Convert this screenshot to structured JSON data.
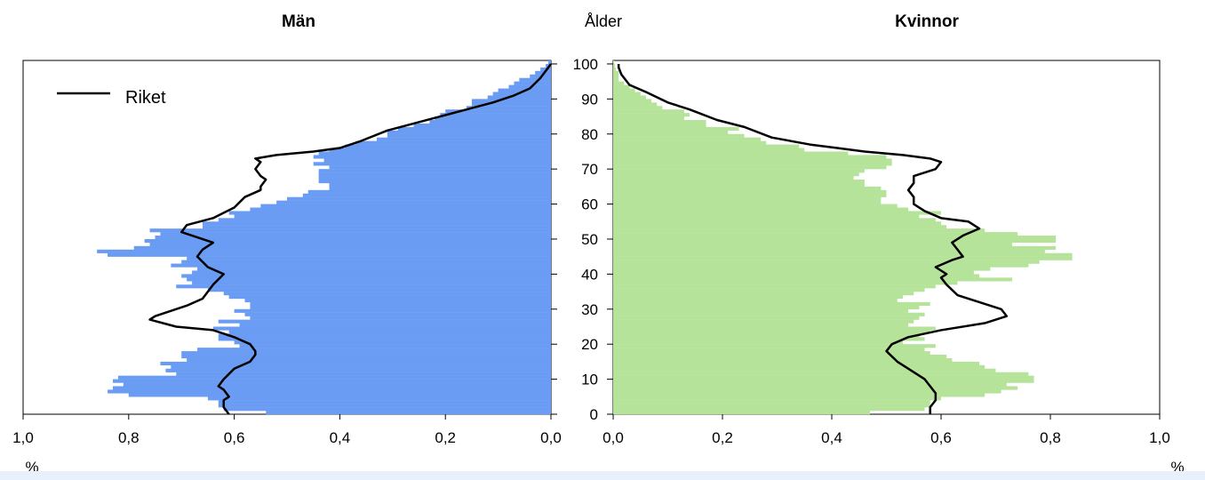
{
  "chart_data": {
    "type": "population-pyramid",
    "center_label": "Ålder",
    "y_ticks": [
      0,
      10,
      20,
      30,
      40,
      50,
      60,
      70,
      80,
      90,
      100
    ],
    "ylim": [
      0,
      101
    ],
    "legend": {
      "label": "Riket",
      "position": "top-left"
    },
    "panels": [
      {
        "title": "Män",
        "side": "left",
        "color": "#6a9cf4",
        "xlim": [
          0,
          1.0
        ],
        "x_ticks": [
          "1,0",
          "0,8",
          "0,6",
          "0,4",
          "0,2",
          "0,0"
        ],
        "unit_label": "%",
        "bars": [
          0.54,
          0.62,
          0.63,
          0.63,
          0.65,
          0.8,
          0.84,
          0.83,
          0.81,
          0.83,
          0.82,
          0.71,
          0.73,
          0.72,
          0.74,
          0.69,
          0.7,
          0.7,
          0.67,
          0.59,
          0.6,
          0.63,
          0.63,
          0.61,
          0.64,
          0.59,
          0.63,
          0.57,
          0.58,
          0.6,
          0.57,
          0.57,
          0.58,
          0.61,
          0.62,
          0.65,
          0.71,
          0.68,
          0.69,
          0.7,
          0.68,
          0.67,
          0.72,
          0.7,
          0.69,
          0.84,
          0.86,
          0.79,
          0.76,
          0.77,
          0.75,
          0.74,
          0.76,
          0.66,
          0.66,
          0.63,
          0.6,
          0.61,
          0.57,
          0.55,
          0.52,
          0.5,
          0.47,
          0.46,
          0.42,
          0.42,
          0.44,
          0.44,
          0.44,
          0.44,
          0.42,
          0.45,
          0.43,
          0.45,
          0.44,
          0.42,
          0.39,
          0.37,
          0.33,
          0.31,
          0.31,
          0.29,
          0.26,
          0.23,
          0.22,
          0.21,
          0.2,
          0.16,
          0.15,
          0.15,
          0.12,
          0.11,
          0.1,
          0.08,
          0.07,
          0.06,
          0.04,
          0.03,
          0.02,
          0.01,
          0.005
        ],
        "riket": [
          [
            0.61,
            0
          ],
          [
            0.62,
            2
          ],
          [
            0.62,
            4
          ],
          [
            0.61,
            5
          ],
          [
            0.62,
            7
          ],
          [
            0.63,
            8
          ],
          [
            0.62,
            10
          ],
          [
            0.6,
            13
          ],
          [
            0.57,
            15
          ],
          [
            0.56,
            17
          ],
          [
            0.56,
            18
          ],
          [
            0.57,
            20
          ],
          [
            0.6,
            22
          ],
          [
            0.64,
            24
          ],
          [
            0.71,
            25
          ],
          [
            0.76,
            27
          ],
          [
            0.75,
            28
          ],
          [
            0.69,
            31
          ],
          [
            0.66,
            33
          ],
          [
            0.65,
            35
          ],
          [
            0.64,
            37
          ],
          [
            0.62,
            40
          ],
          [
            0.65,
            42
          ],
          [
            0.67,
            45
          ],
          [
            0.66,
            47
          ],
          [
            0.64,
            49
          ],
          [
            0.7,
            52
          ],
          [
            0.69,
            54
          ],
          [
            0.64,
            56
          ],
          [
            0.6,
            59
          ],
          [
            0.58,
            62
          ],
          [
            0.55,
            64
          ],
          [
            0.55,
            65
          ],
          [
            0.54,
            67
          ],
          [
            0.55,
            68
          ],
          [
            0.56,
            70
          ],
          [
            0.55,
            72
          ],
          [
            0.56,
            73
          ],
          [
            0.52,
            74
          ],
          [
            0.45,
            75
          ],
          [
            0.4,
            76
          ],
          [
            0.36,
            78
          ],
          [
            0.31,
            81
          ],
          [
            0.26,
            83
          ],
          [
            0.21,
            85
          ],
          [
            0.16,
            87
          ],
          [
            0.11,
            89
          ],
          [
            0.07,
            91
          ],
          [
            0.04,
            93
          ],
          [
            0.02,
            96
          ],
          [
            0.01,
            98
          ],
          [
            0.0,
            100
          ]
        ]
      },
      {
        "title": "Kvinnor",
        "side": "right",
        "color": "#b5e399",
        "xlim": [
          0,
          1.0
        ],
        "x_ticks": [
          "0,0",
          "0,2",
          "0,4",
          "0,6",
          "0,8",
          "1,0"
        ],
        "unit_label": "%",
        "bars": [
          0.47,
          0.57,
          0.58,
          0.58,
          0.6,
          0.68,
          0.71,
          0.74,
          0.72,
          0.77,
          0.77,
          0.76,
          0.7,
          0.68,
          0.67,
          0.62,
          0.61,
          0.58,
          0.57,
          0.59,
          0.53,
          0.57,
          0.56,
          0.58,
          0.59,
          0.54,
          0.55,
          0.56,
          0.57,
          0.54,
          0.56,
          0.58,
          0.52,
          0.53,
          0.55,
          0.57,
          0.59,
          0.63,
          0.73,
          0.67,
          0.66,
          0.69,
          0.76,
          0.78,
          0.84,
          0.84,
          0.79,
          0.81,
          0.73,
          0.81,
          0.81,
          0.74,
          0.68,
          0.61,
          0.6,
          0.59,
          0.56,
          0.6,
          0.54,
          0.52,
          0.49,
          0.49,
          0.5,
          0.5,
          0.49,
          0.46,
          0.46,
          0.44,
          0.45,
          0.46,
          0.5,
          0.51,
          0.51,
          0.5,
          0.43,
          0.35,
          0.34,
          0.28,
          0.27,
          0.24,
          0.21,
          0.23,
          0.17,
          0.17,
          0.13,
          0.14,
          0.13,
          0.09,
          0.08,
          0.07,
          0.06,
          0.05,
          0.04,
          0.03,
          0.02,
          0.01,
          0.01,
          0.01,
          0.005,
          0.003,
          0.002
        ],
        "riket": [
          [
            0.58,
            0
          ],
          [
            0.58,
            2
          ],
          [
            0.59,
            4
          ],
          [
            0.59,
            6
          ],
          [
            0.58,
            8
          ],
          [
            0.57,
            10
          ],
          [
            0.55,
            12
          ],
          [
            0.52,
            15
          ],
          [
            0.5,
            18
          ],
          [
            0.51,
            20
          ],
          [
            0.54,
            22
          ],
          [
            0.6,
            24
          ],
          [
            0.68,
            26
          ],
          [
            0.72,
            28
          ],
          [
            0.71,
            30
          ],
          [
            0.67,
            32
          ],
          [
            0.63,
            34
          ],
          [
            0.61,
            37
          ],
          [
            0.6,
            39
          ],
          [
            0.61,
            40
          ],
          [
            0.59,
            42
          ],
          [
            0.62,
            44
          ],
          [
            0.64,
            45
          ],
          [
            0.63,
            47
          ],
          [
            0.62,
            49
          ],
          [
            0.64,
            51
          ],
          [
            0.67,
            53
          ],
          [
            0.65,
            55
          ],
          [
            0.6,
            56
          ],
          [
            0.57,
            58
          ],
          [
            0.55,
            60
          ],
          [
            0.55,
            62
          ],
          [
            0.54,
            64
          ],
          [
            0.55,
            66
          ],
          [
            0.55,
            68
          ],
          [
            0.59,
            70
          ],
          [
            0.6,
            72
          ],
          [
            0.58,
            73
          ],
          [
            0.53,
            74
          ],
          [
            0.46,
            75
          ],
          [
            0.41,
            76
          ],
          [
            0.36,
            77
          ],
          [
            0.29,
            79
          ],
          [
            0.24,
            82
          ],
          [
            0.19,
            84
          ],
          [
            0.14,
            87
          ],
          [
            0.1,
            89
          ],
          [
            0.06,
            92
          ],
          [
            0.03,
            94
          ],
          [
            0.015,
            97
          ],
          [
            0.01,
            99
          ],
          [
            0.01,
            100
          ]
        ]
      }
    ]
  }
}
